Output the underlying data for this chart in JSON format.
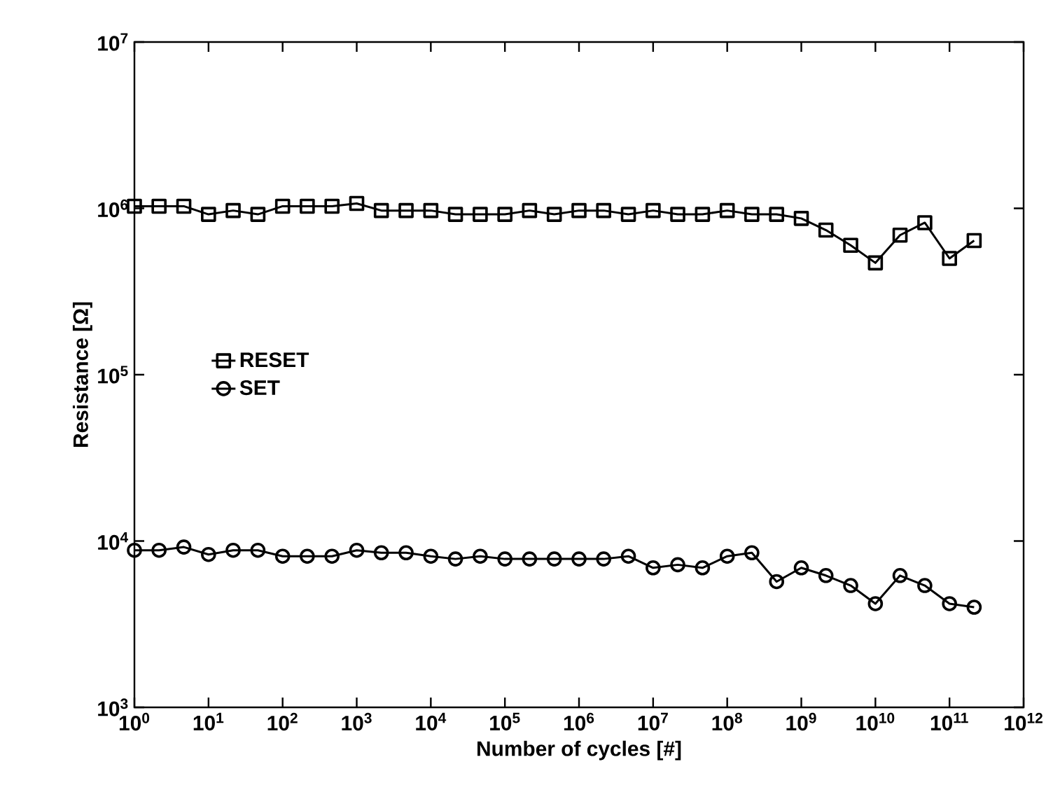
{
  "chart_data": {
    "type": "line",
    "xlabel": "Number of cycles [#]",
    "ylabel": "Resistance [Ω]",
    "log": "xy",
    "xlim": [
      1,
      1000000000000.0
    ],
    "ylim": [
      1000,
      10000000.0
    ],
    "xticks": [
      {
        "value": 1,
        "label": "10$^{0}$"
      },
      {
        "value": 10.0,
        "label": "10$^{1}$"
      },
      {
        "value": 100.0,
        "label": "10$^{2}$"
      },
      {
        "value": 1000.0,
        "label": "10$^{3}$"
      },
      {
        "value": 10000.0,
        "label": "10$^{4}$"
      },
      {
        "value": 100000.0,
        "label": "10$^{5}$"
      },
      {
        "value": 1000000.0,
        "label": "10$^{6}$"
      },
      {
        "value": 10000000.0,
        "label": "10$^{7}$"
      },
      {
        "value": 100000000.0,
        "label": "10$^{8}$"
      },
      {
        "value": 1000000000.0,
        "label": "10$^{9}$"
      },
      {
        "value": 10000000000.0,
        "label": "10$^{10}$"
      },
      {
        "value": 100000000000.0,
        "label": "10$^{11}$"
      },
      {
        "value": 1000000000000.0,
        "label": "10$^{12}$"
      }
    ],
    "yticks": [
      {
        "value": 1000,
        "label": "10$^{3}$"
      },
      {
        "value": 10000.0,
        "label": "10$^{4}$"
      },
      {
        "value": 100000.0,
        "label": "10$^{5}$"
      },
      {
        "value": 1000000.0,
        "label": "10$^{6}$"
      },
      {
        "value": 10000000.0,
        "label": "10$^{7}$"
      }
    ],
    "x": [
      1,
      2.15,
      4.64,
      10.0,
      21.5,
      46.4,
      100.0,
      215.0,
      464.0,
      1000.0,
      2150.0,
      4640.0,
      10000.0,
      21500.0,
      46400.0,
      100000.0,
      215000.0,
      464000.0,
      1000000.0,
      2150000.0,
      4640000.0,
      10000000.0,
      21500000.0,
      46400000.0,
      100000000.0,
      215000000.0,
      464000000.0,
      1000000000.0,
      2150000000.0,
      4640000000.0,
      10000000000.0,
      21500000000.0,
      46400000000.0,
      100000000000.0,
      215000000000.0
    ],
    "legend": "left",
    "grid": false,
    "line_style": "solid",
    "series": [
      {
        "name": "RESET",
        "color": "#000000",
        "marker": "square",
        "values": [
          1030000.0,
          1030000.0,
          1030000.0,
          920000.0,
          970000.0,
          920000.0,
          1030000.0,
          1030000.0,
          1030000.0,
          1070000.0,
          970000.0,
          970000.0,
          970000.0,
          920000.0,
          920000.0,
          920000.0,
          970000.0,
          920000.0,
          970000.0,
          970000.0,
          920000.0,
          970000.0,
          920000.0,
          920000.0,
          970000.0,
          920000.0,
          920000.0,
          870000.0,
          740000.0,
          600000.0,
          470000.0,
          690000.0,
          820000.0,
          500000.0,
          640000.0
        ]
      },
      {
        "name": "SET",
        "color": "#000000",
        "marker": "circle",
        "values": [
          8800,
          8800,
          9200,
          8300,
          8800,
          8800,
          8100,
          8100,
          8100,
          8800,
          8500,
          8500,
          8100,
          7800,
          8100,
          7800,
          7800,
          7800,
          7800,
          7800,
          8100,
          6900,
          7200,
          6900,
          8100,
          8500,
          5700,
          6900,
          6200,
          5400,
          4200,
          6200,
          5400,
          4200,
          4000
        ]
      }
    ]
  }
}
